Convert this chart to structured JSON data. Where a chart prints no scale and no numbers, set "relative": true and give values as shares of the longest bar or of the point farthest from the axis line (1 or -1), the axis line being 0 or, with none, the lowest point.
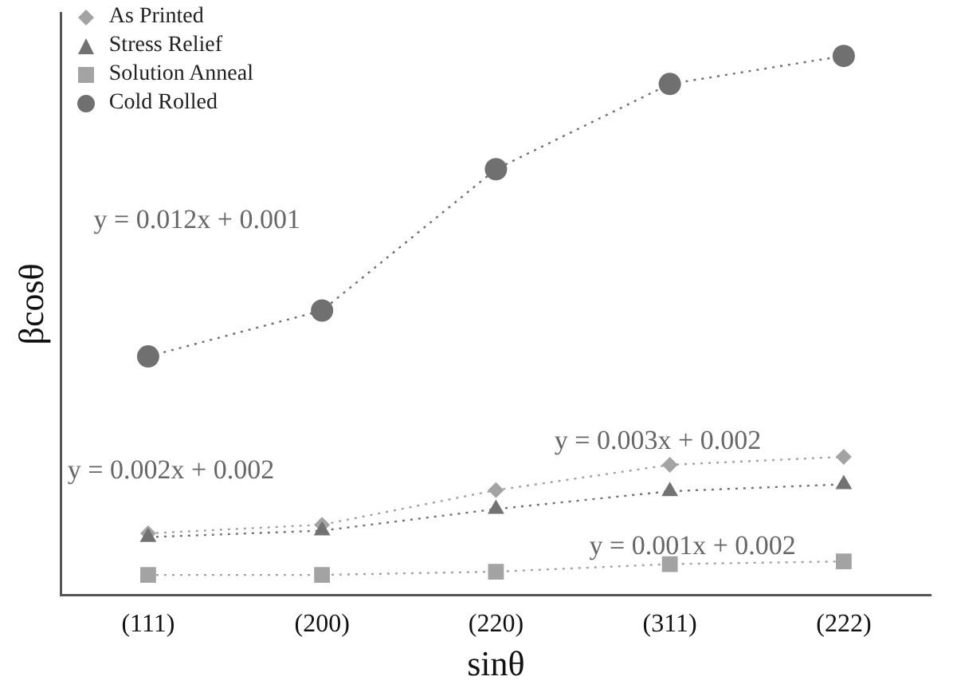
{
  "chart_data": {
    "type": "line",
    "relative": true,
    "xlabel": "sinθ",
    "ylabel": "βcosθ",
    "categories": [
      "(111)",
      "(200)",
      "(220)",
      "(311)",
      "(222)"
    ],
    "series": [
      {
        "name": "As Printed",
        "color": "#a3a3a3",
        "marker": "diamond",
        "line_style": "dotted",
        "values": [
          0.115,
          0.131,
          0.195,
          0.242,
          0.257
        ]
      },
      {
        "name": "Stress Relief",
        "color": "#727272",
        "marker": "triangle",
        "line_style": "dotted",
        "values": [
          0.108,
          0.12,
          0.16,
          0.193,
          0.206
        ]
      },
      {
        "name": "Solution Anneal",
        "color": "#a3a3a3",
        "marker": "square",
        "line_style": "dotted",
        "values": [
          0.038,
          0.038,
          0.044,
          0.058,
          0.063
        ]
      },
      {
        "name": "Cold Rolled",
        "color": "#707070",
        "marker": "circle",
        "line_style": "dotted",
        "values": [
          0.443,
          0.528,
          0.79,
          0.948,
          1
        ]
      }
    ],
    "annotations": [
      "y = 0.012x + 0.001",
      "y = 0.003x + 0.002",
      "y = 0.002x + 0.002",
      "y = 0.001x + 0.002"
    ],
    "legend": "top left",
    "grid": false
  }
}
